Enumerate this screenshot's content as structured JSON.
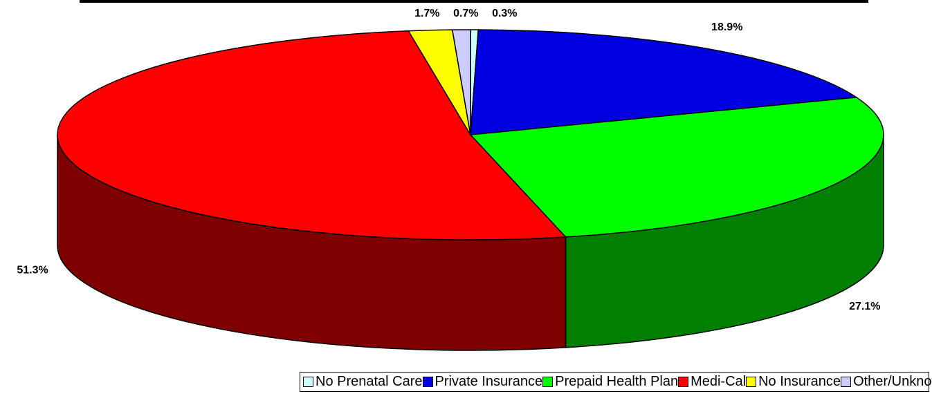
{
  "chart_data": {
    "type": "pie3d",
    "categories": [
      "No Prenatal Care",
      "Private Insurance",
      "Prepaid Health Plan",
      "Medi-Cal",
      "No Insurance",
      "Other/Unknown"
    ],
    "values": [
      0.3,
      18.9,
      27.1,
      51.3,
      1.7,
      0.7
    ],
    "value_labels": [
      "0.3%",
      "18.9%",
      "27.1%",
      "51.3%",
      "1.7%",
      "0.7%"
    ],
    "colors": [
      "#ccffff",
      "#0000e0",
      "#00ff00",
      "#ff0000",
      "#ffff00",
      "#ccccff"
    ],
    "legend": "bottom"
  }
}
